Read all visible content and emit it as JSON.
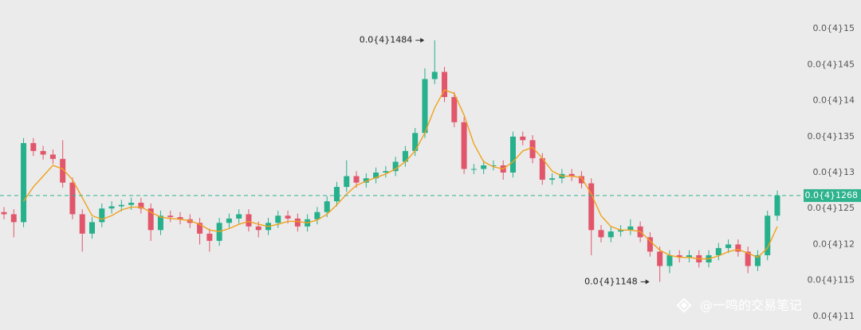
{
  "chart_data": {
    "type": "candlestick",
    "ylim": [
      1.081e-05,
      1.54e-05
    ],
    "yticks": [
      {
        "value": 1.5e-05,
        "label": "0.0{4}15"
      },
      {
        "value": 1.45e-05,
        "label": "0.0{4}145"
      },
      {
        "value": 1.4e-05,
        "label": "0.0{4}14"
      },
      {
        "value": 1.35e-05,
        "label": "0.0{4}135"
      },
      {
        "value": 1.3e-05,
        "label": "0.0{4}13"
      },
      {
        "value": 1.25e-05,
        "label": "0.0{4}125"
      },
      {
        "value": 1.2e-05,
        "label": "0.0{4}12"
      },
      {
        "value": 1.15e-05,
        "label": "0.0{4}115"
      },
      {
        "value": 1.1e-05,
        "label": "0.0{4}11"
      }
    ],
    "up_color": "#26b08c",
    "down_color": "#e2566b",
    "open": [
      1.245e-05,
      1.242e-05,
      1.231e-05,
      1.341e-05,
      1.33e-05,
      1.325e-05,
      1.319e-05,
      1.286e-05,
      1.242e-05,
      1.215e-05,
      1.231e-05,
      1.25e-05,
      1.253e-05,
      1.255e-05,
      1.258e-05,
      1.25e-05,
      1.22e-05,
      1.24e-05,
      1.238e-05,
      1.235e-05,
      1.23e-05,
      1.215e-05,
      1.205e-05,
      1.23e-05,
      1.236e-05,
      1.242e-05,
      1.225e-05,
      1.22e-05,
      1.23e-05,
      1.24e-05,
      1.236e-05,
      1.225e-05,
      1.235e-05,
      1.245e-05,
      1.26e-05,
      1.28e-05,
      1.295e-05,
      1.286e-05,
      1.292e-05,
      1.3e-05,
      1.302e-05,
      1.315e-05,
      1.33e-05,
      1.355e-05,
      1.43e-05,
      1.44e-05,
      1.405e-05,
      1.37e-05,
      1.305e-05,
      1.305e-05,
      1.31e-05,
      1.31e-05,
      1.3e-05,
      1.35e-05,
      1.345e-05,
      1.32e-05,
      1.29e-05,
      1.292e-05,
      1.298e-05,
      1.295e-05,
      1.285e-05,
      1.22e-05,
      1.21e-05,
      1.218e-05,
      1.22e-05,
      1.225e-05,
      1.21e-05,
      1.19e-05,
      1.17e-05,
      1.185e-05,
      1.182e-05,
      1.185e-05,
      1.175e-05,
      1.185e-05,
      1.195e-05,
      1.2e-05,
      1.19e-05,
      1.17e-05,
      1.185e-05,
      1.24e-05
    ],
    "high": [
      1.252e-05,
      1.249e-05,
      1.348e-05,
      1.348e-05,
      1.337e-05,
      1.332e-05,
      1.345e-05,
      1.293e-05,
      1.249e-05,
      1.238e-05,
      1.257e-05,
      1.26e-05,
      1.262e-05,
      1.265e-05,
      1.265e-05,
      1.257e-05,
      1.247e-05,
      1.247e-05,
      1.245e-05,
      1.242e-05,
      1.237e-05,
      1.222e-05,
      1.237e-05,
      1.243e-05,
      1.249e-05,
      1.249e-05,
      1.232e-05,
      1.237e-05,
      1.247e-05,
      1.247e-05,
      1.243e-05,
      1.242e-05,
      1.252e-05,
      1.267e-05,
      1.287e-05,
      1.317e-05,
      1.302e-05,
      1.299e-05,
      1.307e-05,
      1.309e-05,
      1.322e-05,
      1.337e-05,
      1.362e-05,
      1.445e-05,
      1.484e-05,
      1.447e-05,
      1.412e-05,
      1.377e-05,
      1.312e-05,
      1.317e-05,
      1.317e-05,
      1.317e-05,
      1.357e-05,
      1.357e-05,
      1.352e-05,
      1.327e-05,
      1.299e-05,
      1.305e-05,
      1.305e-05,
      1.302e-05,
      1.292e-05,
      1.227e-05,
      1.225e-05,
      1.227e-05,
      1.235e-05,
      1.232e-05,
      1.217e-05,
      1.197e-05,
      1.192e-05,
      1.192e-05,
      1.192e-05,
      1.192e-05,
      1.192e-05,
      1.202e-05,
      1.207e-05,
      1.207e-05,
      1.197e-05,
      1.192e-05,
      1.247e-05,
      1.275e-05
    ],
    "low": [
      1.235e-05,
      1.21e-05,
      1.224e-05,
      1.323e-05,
      1.318e-05,
      1.312e-05,
      1.279e-05,
      1.235e-05,
      1.19e-05,
      1.208e-05,
      1.224e-05,
      1.243e-05,
      1.246e-05,
      1.248e-05,
      1.243e-05,
      1.205e-05,
      1.213e-05,
      1.231e-05,
      1.228e-05,
      1.223e-05,
      1.2e-05,
      1.19e-05,
      1.198e-05,
      1.223e-05,
      1.229e-05,
      1.218e-05,
      1.21e-05,
      1.213e-05,
      1.223e-05,
      1.229e-05,
      1.218e-05,
      1.218e-05,
      1.228e-05,
      1.238e-05,
      1.253e-05,
      1.273e-05,
      1.279e-05,
      1.279e-05,
      1.285e-05,
      1.293e-05,
      1.295e-05,
      1.308e-05,
      1.323e-05,
      1.348e-05,
      1.423e-05,
      1.398e-05,
      1.363e-05,
      1.298e-05,
      1.298e-05,
      1.298e-05,
      1.303e-05,
      1.29e-05,
      1.293e-05,
      1.338e-05,
      1.313e-05,
      1.283e-05,
      1.283e-05,
      1.285e-05,
      1.288e-05,
      1.278e-05,
      1.185e-05,
      1.203e-05,
      1.203e-05,
      1.211e-05,
      1.213e-05,
      1.203e-05,
      1.183e-05,
      1.148e-05,
      1.16e-05,
      1.175e-05,
      1.175e-05,
      1.168e-05,
      1.168e-05,
      1.178e-05,
      1.188e-05,
      1.183e-05,
      1.16e-05,
      1.163e-05,
      1.178e-05,
      1.233e-05
    ],
    "close": [
      1.242e-05,
      1.231e-05,
      1.341e-05,
      1.33e-05,
      1.325e-05,
      1.319e-05,
      1.286e-05,
      1.242e-05,
      1.215e-05,
      1.231e-05,
      1.25e-05,
      1.253e-05,
      1.255e-05,
      1.258e-05,
      1.25e-05,
      1.22e-05,
      1.24e-05,
      1.238e-05,
      1.235e-05,
      1.23e-05,
      1.215e-05,
      1.205e-05,
      1.23e-05,
      1.236e-05,
      1.242e-05,
      1.225e-05,
      1.22e-05,
      1.23e-05,
      1.24e-05,
      1.236e-05,
      1.225e-05,
      1.235e-05,
      1.245e-05,
      1.26e-05,
      1.28e-05,
      1.295e-05,
      1.286e-05,
      1.292e-05,
      1.3e-05,
      1.302e-05,
      1.315e-05,
      1.33e-05,
      1.355e-05,
      1.43e-05,
      1.44e-05,
      1.405e-05,
      1.37e-05,
      1.305e-05,
      1.305e-05,
      1.31e-05,
      1.31e-05,
      1.3e-05,
      1.35e-05,
      1.345e-05,
      1.32e-05,
      1.29e-05,
      1.292e-05,
      1.298e-05,
      1.295e-05,
      1.285e-05,
      1.22e-05,
      1.21e-05,
      1.218e-05,
      1.22e-05,
      1.225e-05,
      1.21e-05,
      1.19e-05,
      1.17e-05,
      1.185e-05,
      1.182e-05,
      1.185e-05,
      1.175e-05,
      1.185e-05,
      1.195e-05,
      1.2e-05,
      1.19e-05,
      1.17e-05,
      1.185e-05,
      1.24e-05,
      1.268e-05
    ],
    "ma": {
      "color": "#f0a21c",
      "values": [
        null,
        null,
        1.26e-05,
        1.28e-05,
        1.295e-05,
        1.31e-05,
        1.305e-05,
        1.29e-05,
        1.265e-05,
        1.24e-05,
        1.235e-05,
        1.24e-05,
        1.248e-05,
        1.252e-05,
        1.252e-05,
        1.245e-05,
        1.238e-05,
        1.236e-05,
        1.235e-05,
        1.233e-05,
        1.228e-05,
        1.22e-05,
        1.218e-05,
        1.222e-05,
        1.228e-05,
        1.232e-05,
        1.228e-05,
        1.225e-05,
        1.228e-05,
        1.232e-05,
        1.232e-05,
        1.23e-05,
        1.234e-05,
        1.242e-05,
        1.255e-05,
        1.27e-05,
        1.282e-05,
        1.288e-05,
        1.293e-05,
        1.298e-05,
        1.305e-05,
        1.315e-05,
        1.33e-05,
        1.355e-05,
        1.39e-05,
        1.415e-05,
        1.41e-05,
        1.38e-05,
        1.34e-05,
        1.315e-05,
        1.308e-05,
        1.305e-05,
        1.315e-05,
        1.33e-05,
        1.335e-05,
        1.32e-05,
        1.302e-05,
        1.295e-05,
        1.295e-05,
        1.293e-05,
        1.27e-05,
        1.24e-05,
        1.225e-05,
        1.22e-05,
        1.22e-05,
        1.218e-05,
        1.205e-05,
        1.192e-05,
        1.185e-05,
        1.182e-05,
        1.182e-05,
        1.18e-05,
        1.18e-05,
        1.184e-05,
        1.19e-05,
        1.193e-05,
        1.188e-05,
        1.182e-05,
        1.195e-05,
        1.225e-05
      ]
    },
    "last_price": {
      "value": 1.268e-05,
      "label": "0.0{4}1268",
      "color": "#2fb38e"
    },
    "annotations": [
      {
        "value": 1.484e-05,
        "index": 44,
        "label": "0.0{4}1484"
      },
      {
        "value": 1.148e-05,
        "index": 67,
        "label": "0.0{4}1148"
      }
    ],
    "watermark": "@一鸣的交易笔记"
  }
}
